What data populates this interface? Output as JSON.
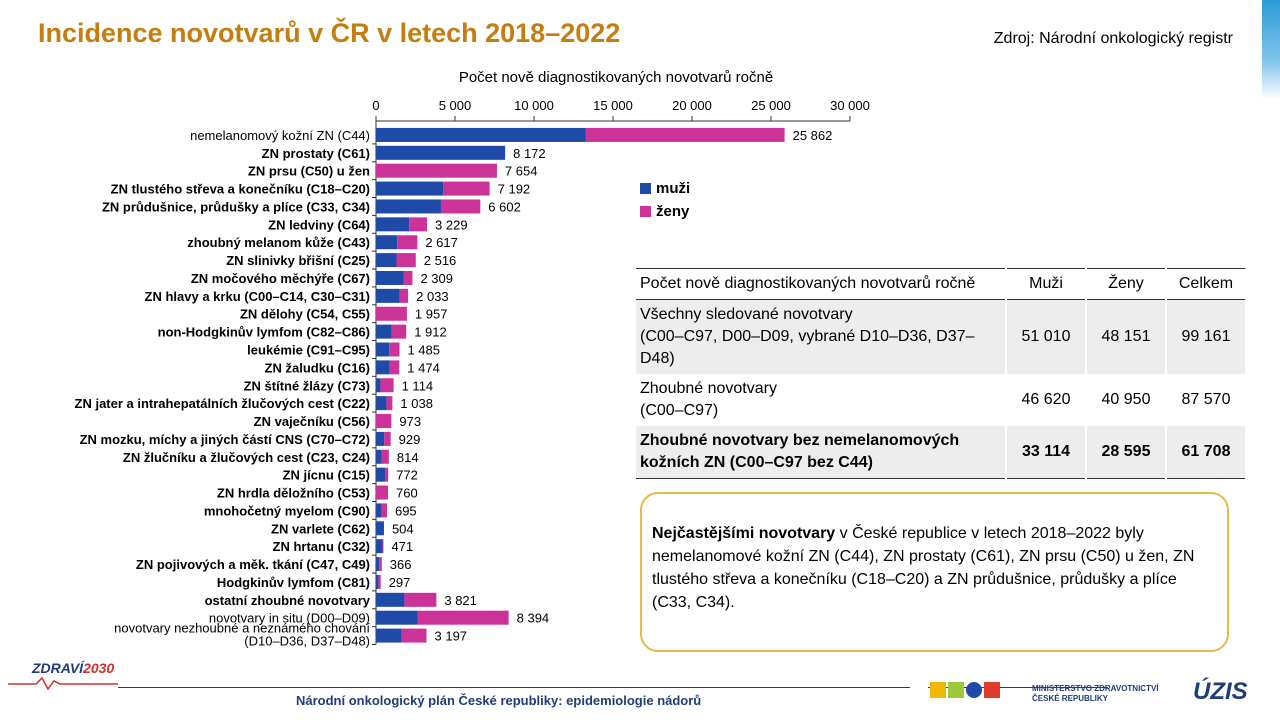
{
  "title": "Incidence novotvarů v ČR v letech 2018–2022",
  "source": "Zdroj: Národní onkologický registr",
  "chart_data": {
    "type": "bar",
    "orientation": "horizontal",
    "stacked": true,
    "title": "Počet nově diagnostikovaných novotvarů ročně",
    "xlim": [
      0,
      30000
    ],
    "ticks": [
      0,
      5000,
      10000,
      15000,
      20000,
      25000,
      30000
    ],
    "tick_labels": [
      "0",
      "5 000",
      "10 000",
      "15 000",
      "20 000",
      "25 000",
      "30 000"
    ],
    "colors": {
      "muzi": "#1f4aa8",
      "zeny": "#cc3399"
    },
    "legend": [
      "muži",
      "ženy"
    ],
    "legend_position": "right",
    "categories": [
      {
        "label": "nemelanomový  kožní ZN (C44)",
        "bold": false,
        "male": 13260,
        "female": 12602,
        "total_label": "25 862"
      },
      {
        "label": "ZN prostaty (C61)",
        "bold": true,
        "male": 8172,
        "female": 0,
        "total_label": "8 172"
      },
      {
        "label": "ZN prsu (C50) u žen",
        "bold": true,
        "male": 0,
        "female": 7654,
        "total_label": "7 654"
      },
      {
        "label": "ZN tlustého střeva a konečníku (C18–C20)",
        "bold": true,
        "male": 4262,
        "female": 2930,
        "total_label": "7 192"
      },
      {
        "label": "ZN průdušnice, průdušky a plíce (C33, C34)",
        "bold": true,
        "male": 4111,
        "female": 2491,
        "total_label": "6 602"
      },
      {
        "label": "ZN ledviny (C64)",
        "bold": true,
        "male": 2093,
        "female": 1136,
        "total_label": "3 229"
      },
      {
        "label": "zhoubný melanom kůže (C43)",
        "bold": true,
        "male": 1345,
        "female": 1272,
        "total_label": "2 617"
      },
      {
        "label": "ZN slinivky břišní (C25)",
        "bold": true,
        "male": 1296,
        "female": 1220,
        "total_label": "2 516"
      },
      {
        "label": "ZN močového měchýře (C67)",
        "bold": true,
        "male": 1743,
        "female": 566,
        "total_label": "2 309"
      },
      {
        "label": "ZN hlavy a krku (C00–C14, C30–C31)",
        "bold": true,
        "male": 1484,
        "female": 549,
        "total_label": "2 033"
      },
      {
        "label": "ZN dělohy (C54, C55)",
        "bold": true,
        "male": 0,
        "female": 1957,
        "total_label": "1 957"
      },
      {
        "label": "non-Hodgkinův lymfom (C82–C86)",
        "bold": true,
        "male": 1000,
        "female": 912,
        "total_label": "1 912"
      },
      {
        "label": "leukémie (C91–C95)",
        "bold": true,
        "male": 840,
        "female": 645,
        "total_label": "1 485"
      },
      {
        "label": "ZN žaludku (C16)",
        "bold": true,
        "male": 866,
        "female": 608,
        "total_label": "1 474"
      },
      {
        "label": "ZN štítné žlázy (C73)",
        "bold": true,
        "male": 280,
        "female": 834,
        "total_label": "1 114"
      },
      {
        "label": "ZN jater a intrahepatálních žlučových cest (C22)",
        "bold": true,
        "male": 670,
        "female": 368,
        "total_label": "1 038"
      },
      {
        "label": "ZN vaječníku (C56)",
        "bold": true,
        "male": 0,
        "female": 973,
        "total_label": "973"
      },
      {
        "label": "ZN mozku, míchy a jiných částí CNS (C70–C72)",
        "bold": true,
        "male": 522,
        "female": 407,
        "total_label": "929"
      },
      {
        "label": "ZN žlučníku a žlučových cest (C23, C24)",
        "bold": true,
        "male": 369,
        "female": 445,
        "total_label": "814"
      },
      {
        "label": "ZN jícnu (C15)",
        "bold": true,
        "male": 592,
        "female": 180,
        "total_label": "772"
      },
      {
        "label": "ZN hrdla děložního (C53)",
        "bold": true,
        "male": 0,
        "female": 760,
        "total_label": "760"
      },
      {
        "label": "mnohočetný myelom (C90)",
        "bold": true,
        "male": 365,
        "female": 330,
        "total_label": "695"
      },
      {
        "label": "ZN varlete (C62)",
        "bold": true,
        "male": 504,
        "female": 0,
        "total_label": "504"
      },
      {
        "label": "ZN hrtanu (C32)",
        "bold": true,
        "male": 408,
        "female": 63,
        "total_label": "471"
      },
      {
        "label": "ZN pojivových a měk. tkání (C47, C49)",
        "bold": true,
        "male": 196,
        "female": 170,
        "total_label": "366"
      },
      {
        "label": "Hodgkinův lymfom (C81)",
        "bold": true,
        "male": 154,
        "female": 143,
        "total_label": "297"
      },
      {
        "label": "ostatní zhoubné novotvary",
        "bold": true,
        "male": 1800,
        "female": 2021,
        "total_label": "3 821"
      },
      {
        "label": "novotvary  in situ (D00–D09)",
        "bold": false,
        "male": 2650,
        "female": 5744,
        "total_label": "8 394"
      },
      {
        "label": "novotvary  nezhoubné  a neznámého  chování (D10–D36, D37–D48)",
        "label_lines": [
          "novotvary  nezhoubné  a neznámého  chování",
          "(D10–D36, D37–D48)"
        ],
        "bold": false,
        "male": 1630,
        "female": 1567,
        "total_label": "3 197"
      }
    ]
  },
  "table": {
    "headers": [
      "Počet nově diagnostikovaných novotvarů ročně",
      "Muži",
      "Ženy",
      "Celkem"
    ],
    "rows": [
      {
        "label_lines": [
          "Všechny sledované novotvary",
          "(C00–C97, D00–D09, vybrané D10–D36, D37–D48)"
        ],
        "muzi": "51 010",
        "zeny": "48 151",
        "celkem": "99 161"
      },
      {
        "label_lines": [
          "Zhoubné novotvary",
          "(C00–C97)"
        ],
        "muzi": "46 620",
        "zeny": "40 950",
        "celkem": "87 570"
      },
      {
        "label_lines": [
          "Zhoubné novotvary bez nemelanomových",
          "kožních ZN (C00–C97 bez C44)"
        ],
        "muzi": "33 114",
        "zeny": "28 595",
        "celkem": "61 708"
      }
    ]
  },
  "note": {
    "bold": "Nejčastějšími novotvary",
    "text": " v České republice v letech  2018–2022 byly nemelanomové kožní ZN (C44), ZN prostaty (C61), ZN prsu (C50) u žen, ZN tlustého střeva a konečníku (C18–C20) a ZN průdušnice, průdušky a plíce (C33, C34)."
  },
  "footer": "Národní onkologický plán České republiky: epidemiologie nádorů",
  "logos": {
    "zdravi_a": "ZDRAVÍ",
    "zdravi_b": "2030",
    "ministry_lines": [
      "MINISTERSTVO ZDRAVOTNICTVÍ",
      "ČESKÉ REPUBLIKY"
    ],
    "uzis": "ÚZIS"
  }
}
